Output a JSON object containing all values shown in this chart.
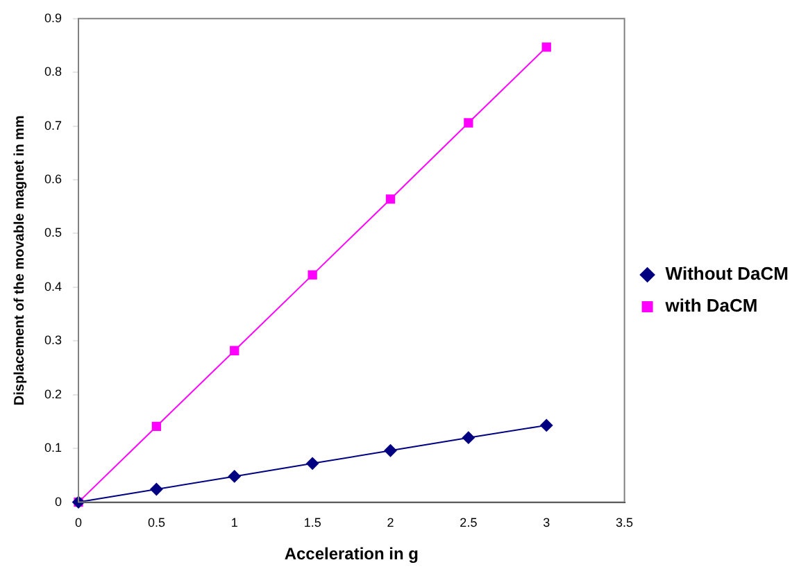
{
  "chart_data": {
    "type": "line",
    "xlabel": "Acceleration in g",
    "ylabel": "Displacement of the movable magnet in mm",
    "x": [
      0,
      0.5,
      1,
      1.5,
      2,
      2.5,
      3
    ],
    "series": [
      {
        "name": "Without DaCM",
        "color": "#000080",
        "marker": "diamond",
        "values": [
          0,
          0.024,
          0.048,
          0.072,
          0.096,
          0.12,
          0.143
        ]
      },
      {
        "name": "with DaCM",
        "color": "#ff00ff",
        "marker": "square",
        "values": [
          0,
          0.141,
          0.282,
          0.423,
          0.564,
          0.706,
          0.847
        ]
      }
    ],
    "xlim": [
      0,
      3.5
    ],
    "xticks": [
      0,
      0.5,
      1,
      1.5,
      2,
      2.5,
      3,
      3.5
    ],
    "ylim": [
      0,
      0.9
    ],
    "yticks": [
      0,
      0.1,
      0.2,
      0.3,
      0.4,
      0.5,
      0.6,
      0.7,
      0.8,
      0.9
    ],
    "grid": false,
    "legend": "right",
    "line_style": "solid"
  }
}
